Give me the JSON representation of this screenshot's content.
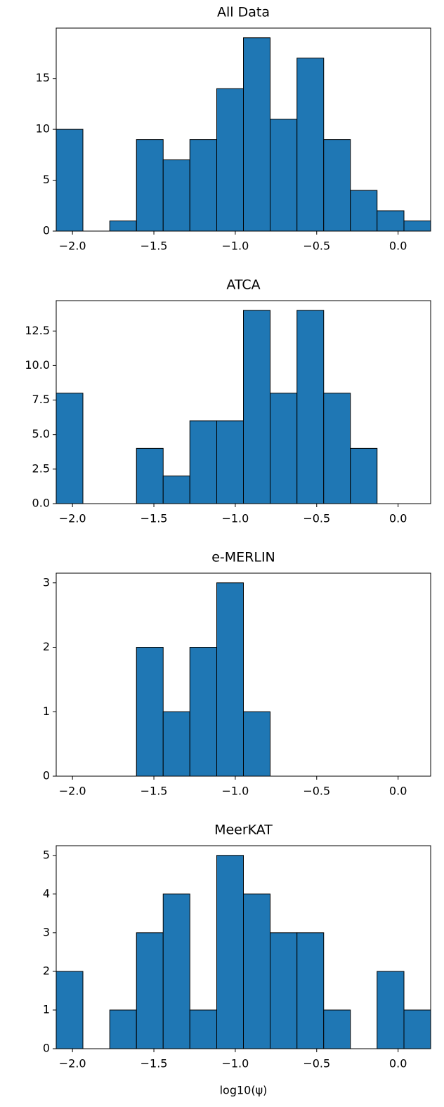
{
  "chart_data": [
    {
      "type": "histogram",
      "title": "All Data",
      "bins": [
        -2.1,
        -1.936,
        -1.771,
        -1.607,
        -1.443,
        -1.279,
        -1.114,
        -0.95,
        -0.786,
        -0.621,
        -0.457,
        -0.293,
        -0.129,
        0.036,
        0.2
      ],
      "values": [
        10,
        0,
        1,
        9,
        7,
        9,
        14,
        19,
        11,
        17,
        9,
        4,
        2,
        1
      ],
      "color": "#1f77b4",
      "edgecolor": "#000000",
      "xlim": [
        -2.1,
        0.2
      ],
      "ylim": [
        0,
        19.95
      ],
      "xticks": [
        {
          "value": -2.0,
          "label": "−2.0"
        },
        {
          "value": -1.5,
          "label": "−1.5"
        },
        {
          "value": -1.0,
          "label": "−1.0"
        },
        {
          "value": -0.5,
          "label": "−0.5"
        },
        {
          "value": 0.0,
          "label": "0.0"
        }
      ],
      "yticks": [
        0,
        5,
        10,
        15
      ]
    },
    {
      "type": "histogram",
      "title": "ATCA",
      "bins": [
        -2.1,
        -1.936,
        -1.771,
        -1.607,
        -1.443,
        -1.279,
        -1.114,
        -0.95,
        -0.786,
        -0.621,
        -0.457,
        -0.293,
        -0.129,
        0.036,
        0.2
      ],
      "values": [
        8,
        0,
        0,
        4,
        2,
        6,
        6,
        14,
        8,
        14,
        8,
        4,
        0,
        0
      ],
      "color": "#1f77b4",
      "edgecolor": "#000000",
      "xlim": [
        -2.1,
        0.2
      ],
      "ylim": [
        0,
        14.7
      ],
      "xticks": [
        {
          "value": -2.0,
          "label": "−2.0"
        },
        {
          "value": -1.5,
          "label": "−1.5"
        },
        {
          "value": -1.0,
          "label": "−1.0"
        },
        {
          "value": -0.5,
          "label": "−0.5"
        },
        {
          "value": 0.0,
          "label": "0.0"
        }
      ],
      "yticks": [
        {
          "value": 0,
          "label": "0.0"
        },
        {
          "value": 2.5,
          "label": "2.5"
        },
        {
          "value": 5,
          "label": "5.0"
        },
        {
          "value": 7.5,
          "label": "7.5"
        },
        {
          "value": 10,
          "label": "10.0"
        },
        {
          "value": 12.5,
          "label": "12.5"
        }
      ]
    },
    {
      "type": "histogram",
      "title": "e-MERLIN",
      "bins": [
        -2.1,
        -1.936,
        -1.771,
        -1.607,
        -1.443,
        -1.279,
        -1.114,
        -0.95,
        -0.786,
        -0.621,
        -0.457,
        -0.293,
        -0.129,
        0.036,
        0.2
      ],
      "values": [
        0,
        0,
        0,
        2,
        1,
        2,
        3,
        1,
        0,
        0,
        0,
        0,
        0,
        0
      ],
      "color": "#1f77b4",
      "edgecolor": "#000000",
      "xlim": [
        -2.1,
        0.2
      ],
      "ylim": [
        0,
        3.15
      ],
      "xticks": [
        {
          "value": -2.0,
          "label": "−2.0"
        },
        {
          "value": -1.5,
          "label": "−1.5"
        },
        {
          "value": -1.0,
          "label": "−1.0"
        },
        {
          "value": -0.5,
          "label": "−0.5"
        },
        {
          "value": 0.0,
          "label": "0.0"
        }
      ],
      "yticks": [
        0,
        1,
        2,
        3
      ]
    },
    {
      "type": "histogram",
      "title": "MeerKAT",
      "xlabel": "log10(ψ)",
      "bins": [
        -2.1,
        -1.936,
        -1.771,
        -1.607,
        -1.443,
        -1.279,
        -1.114,
        -0.95,
        -0.786,
        -0.621,
        -0.457,
        -0.293,
        -0.129,
        0.036,
        0.2
      ],
      "values": [
        2,
        0,
        1,
        3,
        4,
        1,
        5,
        4,
        3,
        3,
        1,
        0,
        2,
        1
      ],
      "color": "#1f77b4",
      "edgecolor": "#000000",
      "xlim": [
        -2.1,
        0.2
      ],
      "ylim": [
        0,
        5.25
      ],
      "xticks": [
        {
          "value": -2.0,
          "label": "−2.0"
        },
        {
          "value": -1.5,
          "label": "−1.5"
        },
        {
          "value": -1.0,
          "label": "−1.0"
        },
        {
          "value": -0.5,
          "label": "−0.5"
        },
        {
          "value": 0.0,
          "label": "0.0"
        }
      ],
      "yticks": [
        0,
        1,
        2,
        3,
        4,
        5
      ]
    }
  ]
}
